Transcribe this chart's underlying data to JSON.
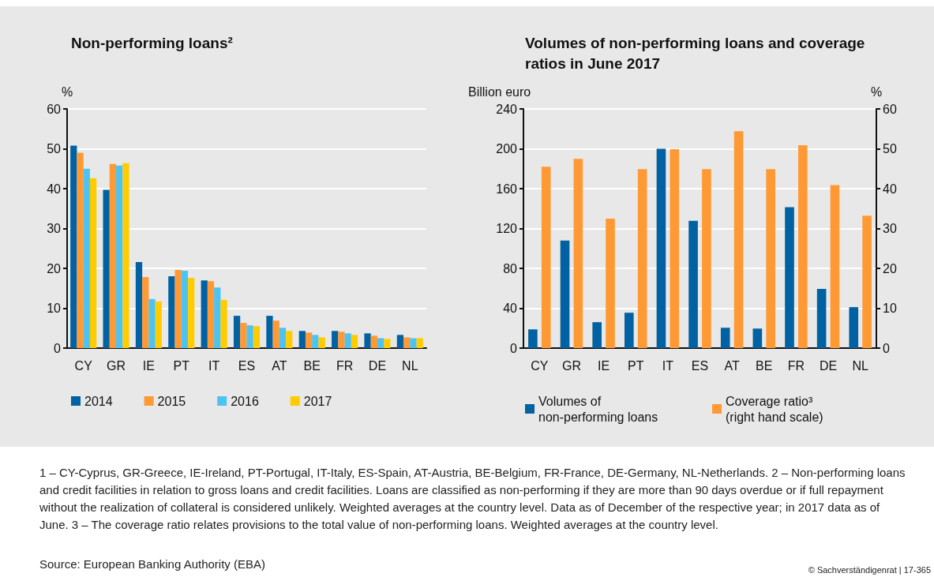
{
  "chart_data": [
    {
      "type": "bar",
      "title": "Non-performing loans²",
      "ylabel": "%",
      "categories": [
        "CY",
        "GR",
        "IE",
        "PT",
        "IT",
        "ES",
        "AT",
        "BE",
        "FR",
        "DE",
        "NL"
      ],
      "series": [
        {
          "name": "2014",
          "color": "#0061a3",
          "values": [
            50.8,
            39.7,
            21.6,
            18.0,
            17.0,
            8.1,
            8.1,
            4.3,
            4.3,
            3.7,
            3.3
          ]
        },
        {
          "name": "2015",
          "color": "#ff9933",
          "values": [
            49.0,
            46.2,
            17.8,
            19.6,
            16.8,
            6.3,
            6.9,
            3.9,
            4.1,
            3.1,
            2.7
          ]
        },
        {
          "name": "2016",
          "color": "#4dc3f2",
          "values": [
            45.0,
            45.8,
            12.3,
            19.4,
            15.2,
            5.7,
            5.1,
            3.3,
            3.7,
            2.5,
            2.5
          ]
        },
        {
          "name": "2017",
          "color": "#ffcc00",
          "values": [
            42.6,
            46.4,
            11.7,
            17.6,
            12.1,
            5.5,
            4.3,
            2.7,
            3.3,
            2.3,
            2.5
          ]
        }
      ],
      "ylim": [
        0,
        60
      ],
      "yticks": [
        0,
        10,
        20,
        30,
        40,
        50,
        60
      ],
      "grid": "y",
      "legend": "bottom",
      "annotations": [
        "1 – CY-Cyprus, GR-Greece, IE-Ireland, PT-Portugal, IT-Italy, ES-Spain, AT-Austria, BE-Belgium, FR-France, DE-Germany, NL-Netherlands.  2 – Non-performing loans and credit facilities in relation to gross loans and credit facilities. Loans are classified as non-performing if they are more than 90 days overdue or if full repayment without the realization of collateral is considered unlikely. Weighted averages at the country level. Data as of December of the respective year; in 2017 data as of June.  3 – The coverage ratio relates provisions to the total value of non-performing loans. Weighted averages at the country level.",
        "Source: European Banking Authority (EBA)",
        "© Sachverständigenrat | 17-365"
      ]
    },
    {
      "type": "bar",
      "title": "Volumes of non-performing loans and coverage ratios in June 2017",
      "ylabel": "Billion euro",
      "y2label": "%",
      "categories": [
        "CY",
        "GR",
        "IE",
        "PT",
        "IT",
        "ES",
        "AT",
        "BE",
        "FR",
        "DE",
        "NL"
      ],
      "series": [
        {
          "name": "Volumes of non-performing loans",
          "color": "#0061a3",
          "values": [
            18.8,
            108,
            26,
            35.5,
            200,
            127.8,
            20.4,
            19.6,
            141.4,
            59.4,
            41.1
          ]
        },
        {
          "name": "Coverage ratio³ (right hand scale)",
          "color": "#ff9933",
          "axis": "y2",
          "values": [
            45.5,
            47.5,
            32.5,
            44.9,
            49.9,
            44.9,
            54.4,
            44.9,
            50.9,
            40.9,
            33.2
          ]
        }
      ],
      "ylim": [
        0,
        240
      ],
      "yticks": [
        0,
        40,
        80,
        120,
        160,
        200,
        240
      ],
      "y2lim": [
        0,
        60
      ],
      "y2ticks": [
        0,
        10,
        20,
        30,
        40,
        50,
        60
      ],
      "grid": "y",
      "legend": "bottom"
    }
  ]
}
